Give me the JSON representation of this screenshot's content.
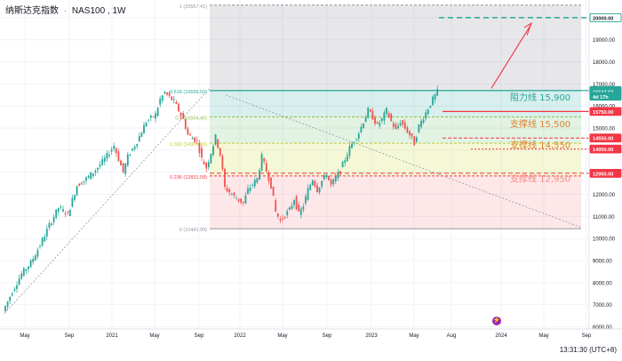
{
  "header": {
    "symbol_name": "纳斯达克指数",
    "ticker": "NAS100",
    "interval": "1W"
  },
  "status": {
    "time": "13:31:30 (UTC+8)"
  },
  "colors": {
    "up": "#26a69a",
    "down": "#ef5350",
    "resistance_text": "#26a69a",
    "support_text": "#e0822f",
    "support_strong_text": "#f28b82",
    "target_line": "#089981",
    "red_marker": "#f23645",
    "price_tag": "#26a69a"
  },
  "chart_data": {
    "type": "candlestick",
    "title": "",
    "xlabel": "",
    "ylabel": "",
    "x_ticks": [
      "May",
      "Sep",
      "2021",
      "May",
      "Sep",
      "2022",
      "May",
      "Sep",
      "2023",
      "May",
      "Aug",
      "2024",
      "May",
      "Sep"
    ],
    "y_ticks": [
      6000,
      7000,
      8000,
      9000,
      10000,
      11000,
      12000,
      13000,
      14000,
      15000,
      16000,
      17000,
      18000,
      19000,
      20000
    ],
    "ylim": [
      5900,
      20800
    ],
    "grid": true,
    "fibonacci": [
      {
        "level": "1",
        "price": 20567.41,
        "label": "1 (20567.41)"
      },
      {
        "level": "0.618",
        "price": 16699.5,
        "label": "0.618 (16699.50)"
      },
      {
        "level": "0.5",
        "price": 15504.46,
        "label": "0.5 (15504.46)"
      },
      {
        "level": "0.382",
        "price": 14309.9,
        "label": "0.382 (14309.90)"
      },
      {
        "level": "0.236",
        "price": 12831.58,
        "label": "0.236 (12831.58)"
      },
      {
        "level": "0",
        "price": 10441.99,
        "label": "0 (10441.99)"
      }
    ],
    "key_levels": [
      {
        "name": "阻力线",
        "price": 15900,
        "label": "阻力线 15,900",
        "kind": "resistance"
      },
      {
        "name": "支撑线",
        "price": 15500,
        "label": "支撑线 15,500",
        "kind": "support"
      },
      {
        "name": "支撑线",
        "price": 14550,
        "label": "支撑线 14,550",
        "kind": "support"
      },
      {
        "name": "支撑线",
        "price": 12950,
        "label": "支撑线 12,950",
        "kind": "support-strong"
      }
    ],
    "axis_tags": [
      {
        "text": "20000.00",
        "price": 20000,
        "style": "target"
      },
      {
        "text": "16700.00",
        "price": 16700,
        "style": "green"
      },
      {
        "text": "16644.63",
        "price": 16644.63,
        "style": "current"
      },
      {
        "text": "4d 17h",
        "price": 16440,
        "style": "countdown"
      },
      {
        "text": "15750.00",
        "price": 15750,
        "style": "red"
      },
      {
        "text": "14550.00",
        "price": 14550,
        "style": "red"
      },
      {
        "text": "14050.00",
        "price": 14050,
        "style": "red"
      },
      {
        "text": "12950.00",
        "price": 12950,
        "style": "red"
      }
    ],
    "current_price": 16644.63,
    "target_price": 20000,
    "path_points": [
      [
        0,
        6700
      ],
      [
        4,
        7600
      ],
      [
        8,
        8400
      ],
      [
        12,
        8900
      ],
      [
        16,
        9700
      ],
      [
        20,
        10600
      ],
      [
        24,
        11400
      ],
      [
        28,
        11100
      ],
      [
        32,
        12400
      ],
      [
        36,
        12700
      ],
      [
        40,
        13100
      ],
      [
        44,
        13600
      ],
      [
        48,
        14200
      ],
      [
        52,
        13000
      ],
      [
        54,
        13700
      ],
      [
        58,
        14400
      ],
      [
        62,
        15300
      ],
      [
        66,
        15600
      ],
      [
        68,
        16300
      ],
      [
        70,
        16600
      ],
      [
        74,
        16200
      ],
      [
        78,
        15400
      ],
      [
        80,
        14700
      ],
      [
        84,
        14400
      ],
      [
        86,
        13600
      ],
      [
        88,
        13200
      ],
      [
        92,
        14600
      ],
      [
        94,
        13800
      ],
      [
        96,
        12300
      ],
      [
        100,
        11900
      ],
      [
        104,
        11600
      ],
      [
        106,
        12200
      ],
      [
        110,
        12700
      ],
      [
        112,
        13700
      ],
      [
        116,
        12400
      ],
      [
        118,
        11200
      ],
      [
        120,
        10800
      ],
      [
        124,
        11300
      ],
      [
        126,
        11800
      ],
      [
        128,
        11100
      ],
      [
        130,
        11500
      ],
      [
        132,
        12200
      ],
      [
        134,
        12700
      ],
      [
        136,
        12200
      ],
      [
        138,
        12600
      ],
      [
        140,
        12900
      ],
      [
        142,
        12400
      ],
      [
        146,
        13100
      ],
      [
        150,
        14100
      ],
      [
        154,
        14800
      ],
      [
        156,
        15300
      ],
      [
        158,
        15800
      ],
      [
        160,
        15500
      ],
      [
        162,
        15100
      ],
      [
        164,
        15400
      ],
      [
        166,
        15800
      ],
      [
        168,
        15300
      ],
      [
        170,
        14900
      ],
      [
        172,
        15300
      ],
      [
        174,
        15000
      ],
      [
        176,
        14700
      ],
      [
        178,
        14300
      ],
      [
        180,
        15100
      ],
      [
        184,
        15900
      ],
      [
        186,
        16300
      ],
      [
        188,
        16644.63
      ]
    ]
  }
}
